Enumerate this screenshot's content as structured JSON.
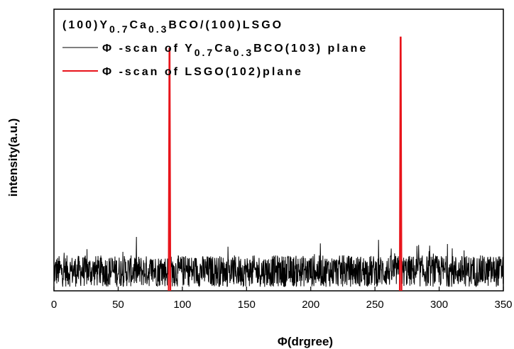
{
  "chart_data": {
    "type": "line",
    "title": "",
    "xlabel": "Φ(drgree)",
    "ylabel": "intensity(a.u.)",
    "xlim": [
      0,
      350
    ],
    "ylim": [
      0,
      100
    ],
    "x_ticks": [
      0,
      50,
      100,
      150,
      200,
      250,
      300,
      350
    ],
    "y_ticks_shown": false,
    "grid": false,
    "legend_placement": "top-left",
    "legend_header": "(100)Y0.7Ca0.3BCO/(100)LSGO",
    "series": [
      {
        "name": "Φ-scan of Y0.7Ca0.3BCO(103) plane",
        "color": "#000000",
        "baseline_level": 7,
        "noise_amplitude": 7,
        "peaks": [
          {
            "x": 90,
            "y": 45
          },
          {
            "x": 270,
            "y": 62
          }
        ]
      },
      {
        "name": "Φ-scan of LSGO(102)plane",
        "color": "#e8141b",
        "peaks": [
          {
            "x": 90,
            "y": 86
          },
          {
            "x": 270,
            "y": 90
          }
        ]
      }
    ],
    "legend": {
      "header_parts": [
        {
          "t": "(100)Y",
          "sub": false
        },
        {
          "t": "0.7",
          "sub": true
        },
        {
          "t": "Ca",
          "sub": false
        },
        {
          "t": "0.3",
          "sub": true
        },
        {
          "t": "BCO/(100)LSGO",
          "sub": false
        }
      ],
      "entry1_parts": [
        {
          "t": "Φ -scan of Y",
          "sub": false
        },
        {
          "t": "0.7",
          "sub": true
        },
        {
          "t": "Ca",
          "sub": false
        },
        {
          "t": "0.3",
          "sub": true
        },
        {
          "t": "BCO(103) plane",
          "sub": false
        }
      ],
      "entry2_parts": [
        {
          "t": "Φ -scan of LSGO(102)plane",
          "sub": false
        }
      ]
    }
  }
}
